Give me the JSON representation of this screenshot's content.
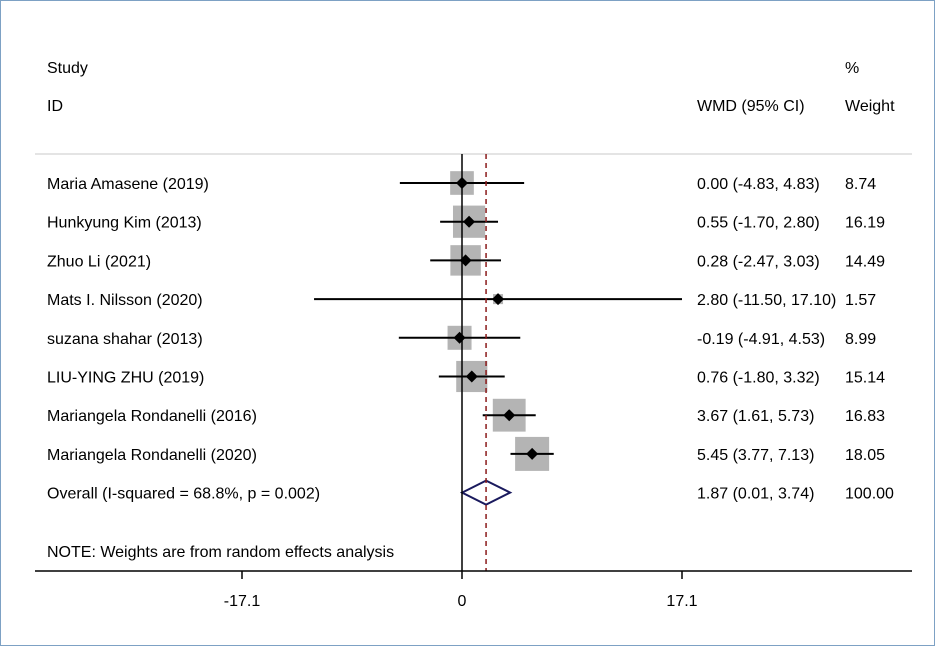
{
  "chart_data": {
    "type": "forest",
    "header": {
      "study_line1": "Study",
      "study_line2": "ID",
      "estimate_label": "WMD (95% CI)",
      "weight_line1": "%",
      "weight_line2": "Weight"
    },
    "studies": [
      {
        "label": "Maria Amasene (2019)",
        "estimate": 0.0,
        "lower": -4.83,
        "upper": 4.83,
        "weight": 8.74,
        "ci_text": "0.00 (-4.83, 4.83)",
        "weight_text": "8.74"
      },
      {
        "label": "Hunkyung Kim (2013)",
        "estimate": 0.55,
        "lower": -1.7,
        "upper": 2.8,
        "weight": 16.19,
        "ci_text": "0.55 (-1.70, 2.80)",
        "weight_text": "16.19"
      },
      {
        "label": "Zhuo Li (2021)",
        "estimate": 0.28,
        "lower": -2.47,
        "upper": 3.03,
        "weight": 14.49,
        "ci_text": "0.28 (-2.47, 3.03)",
        "weight_text": "14.49"
      },
      {
        "label": "Mats I. Nilsson (2020)",
        "estimate": 2.8,
        "lower": -11.5,
        "upper": 17.1,
        "weight": 1.57,
        "ci_text": "2.80 (-11.50, 17.10)",
        "weight_text": "1.57"
      },
      {
        "label": "suzana shahar (2013)",
        "estimate": -0.19,
        "lower": -4.91,
        "upper": 4.53,
        "weight": 8.99,
        "ci_text": "-0.19 (-4.91, 4.53)",
        "weight_text": "8.99"
      },
      {
        "label": "LIU-YING ZHU (2019)",
        "estimate": 0.76,
        "lower": -1.8,
        "upper": 3.32,
        "weight": 15.14,
        "ci_text": "0.76 (-1.80, 3.32)",
        "weight_text": "15.14"
      },
      {
        "label": "Mariangela Rondanelli (2016)",
        "estimate": 3.67,
        "lower": 1.61,
        "upper": 5.73,
        "weight": 16.83,
        "ci_text": "3.67 (1.61, 5.73)",
        "weight_text": "16.83"
      },
      {
        "label": "Mariangela Rondanelli (2020)",
        "estimate": 5.45,
        "lower": 3.77,
        "upper": 7.13,
        "weight": 18.05,
        "ci_text": "5.45 (3.77, 7.13)",
        "weight_text": "18.05"
      }
    ],
    "overall": {
      "label": "Overall  (I-squared = 68.8%, p = 0.002)",
      "estimate": 1.87,
      "lower": 0.01,
      "upper": 3.74,
      "ci_text": "1.87 (0.01, 3.74)",
      "weight_text": "100.00"
    },
    "note": "NOTE: Weights are from random effects analysis",
    "x_ticks": [
      -17.1,
      0,
      17.1
    ],
    "x_tick_labels": [
      "-17.1",
      "0",
      "17.1"
    ],
    "xlim": [
      -33,
      35
    ],
    "reference_line": 0,
    "colors": {
      "box": "#b4b4b4",
      "line": "#000000",
      "dashed": "#8b1a1a",
      "diamond": "#1a1a5e",
      "frame": "#7da1c4"
    }
  }
}
